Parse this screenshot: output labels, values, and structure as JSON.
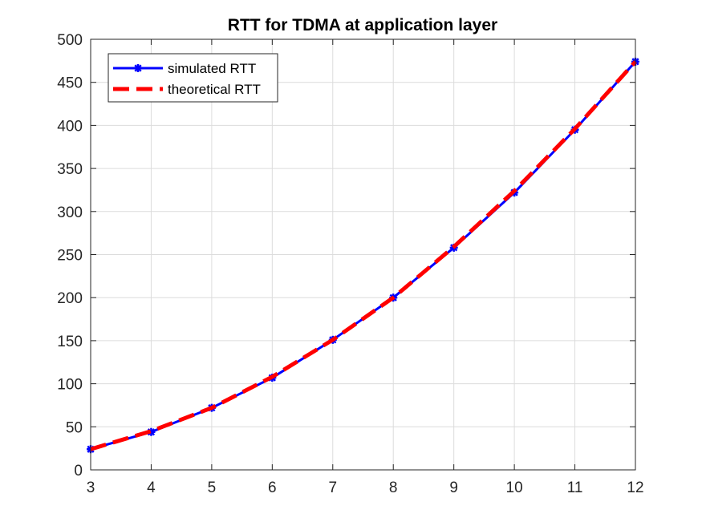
{
  "chart_data": {
    "type": "line",
    "title": "RTT for TDMA at application layer",
    "xlabel": "",
    "ylabel": "",
    "xlim": [
      3,
      12
    ],
    "ylim": [
      0,
      500
    ],
    "x_ticks": [
      3,
      4,
      5,
      6,
      7,
      8,
      9,
      10,
      11,
      12
    ],
    "y_ticks": [
      0,
      50,
      100,
      150,
      200,
      250,
      300,
      350,
      400,
      450,
      500
    ],
    "grid": true,
    "legend_position": "top-left",
    "series": [
      {
        "name": "simulated RTT",
        "color": "#0000ff",
        "line_style": "solid",
        "marker": "asterisk",
        "x": [
          3,
          4,
          5,
          6,
          7,
          8,
          9,
          10,
          11,
          12
        ],
        "y": [
          24,
          44,
          72,
          107,
          151,
          200,
          258,
          322,
          395,
          474
        ]
      },
      {
        "name": "theoretical RTT",
        "color": "#ff0000",
        "line_style": "dashed",
        "marker": "none",
        "x": [
          3,
          4,
          5,
          6,
          7,
          8,
          9,
          10,
          11,
          12
        ],
        "y": [
          24,
          45,
          72,
          108,
          151,
          200,
          259,
          324,
          396,
          474
        ]
      }
    ]
  }
}
